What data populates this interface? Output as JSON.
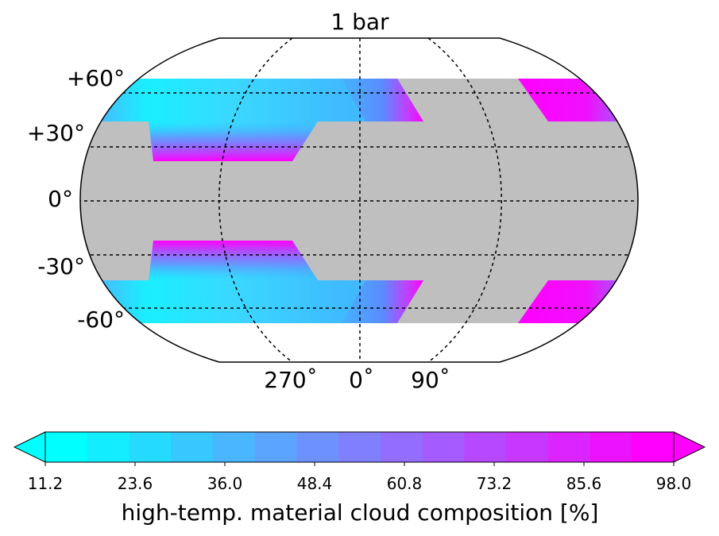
{
  "chart_data": {
    "type": "heatmap",
    "projection": "Robinson (global map)",
    "title": "1 bar",
    "latitude_labels": [
      "+60°",
      "+30°",
      "0°",
      "-30°",
      "-60°"
    ],
    "latitude_values": [
      60,
      30,
      0,
      -30,
      -60
    ],
    "longitude_labels": [
      "270˚",
      "0˚",
      "90˚"
    ],
    "longitude_values": [
      270,
      0,
      90
    ],
    "no_data_color": "#bfbfbf",
    "colormap": [
      "#00ffff",
      "#ff00ff"
    ],
    "colorbar": {
      "label": "high-temp. material cloud composition [%]",
      "ticks": [
        "11.2",
        "23.6",
        "36.0",
        "48.4",
        "60.8",
        "73.2",
        "85.6",
        "98.0"
      ],
      "min": 11.2,
      "max": 98.0,
      "levels": 15,
      "extend": "both",
      "orientation": "horizontal"
    },
    "grid": true,
    "regions": [
      {
        "latitude_band": "north high latitudes (≈+30° to +65°)",
        "west_of_meridian": "cyan core ≈11–25%, magenta edge ≈98% toward +30° near 300°",
        "east_of_meridian": "blue ≈30–48% rising to magenta ≈98% near 60°E; magenta ≈98% near 150–180°E"
      },
      {
        "latitude_band": "south high latitudes (≈-30° to -65°)",
        "west_of_meridian": "cyan core ≈11–25%, magenta edge ≈98% toward -30° near 300°",
        "east_of_meridian": "blue ≈30–48% rising to magenta ≈98% near 60°E; magenta ≈98% near 150–180°E"
      },
      {
        "latitude_band": "equatorial (≈-30° to +30°)",
        "value": "no data (grey)"
      }
    ]
  }
}
